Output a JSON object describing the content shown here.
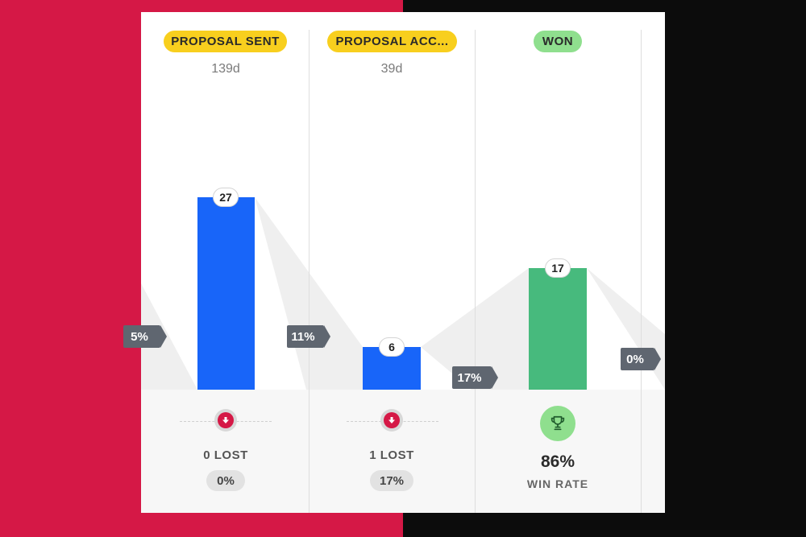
{
  "background": {
    "left_color": "#d51846",
    "right_color": "#0c0c0c"
  },
  "stages": [
    {
      "name": "PROPOSAL SENT",
      "duration": "139d",
      "count": "27",
      "lost_label": "0 LOST",
      "lost_pct": "0%",
      "pill_color": "#f8cf1e",
      "bar_color": "#1865f9",
      "deal_count": 27
    },
    {
      "name": "PROPOSAL ACC...",
      "duration": "39d",
      "count": "6",
      "lost_label": "1 LOST",
      "lost_pct": "17%",
      "pill_color": "#f8cf1e",
      "bar_color": "#1865f9",
      "deal_count": 6
    },
    {
      "name": "WON",
      "count": "17",
      "win_pct": "86%",
      "win_label": "WIN RATE",
      "pill_color": "#8fdf8e",
      "bar_color": "#47ba7d",
      "deal_count": 17
    }
  ],
  "conversions": [
    "5%",
    "11%",
    "17%",
    "0%"
  ],
  "icons": {
    "lost": "arrow-down-icon",
    "won": "trophy-icon"
  }
}
